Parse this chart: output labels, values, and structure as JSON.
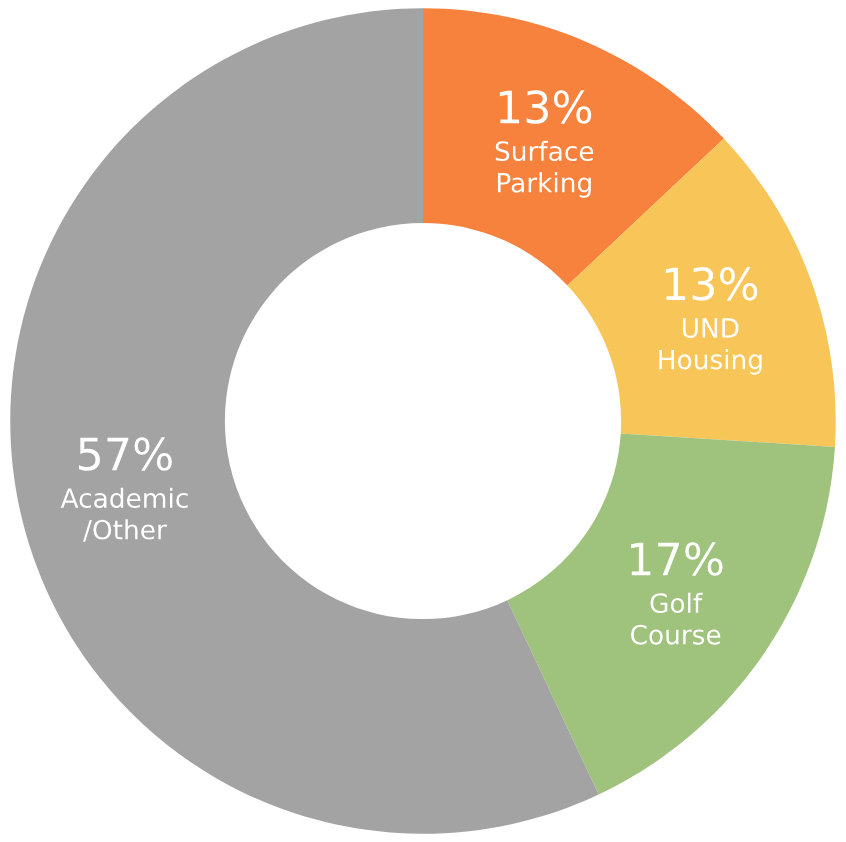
{
  "chart_data": {
    "type": "donut",
    "categories": [
      "Surface\nParking",
      "UND\nHousing",
      "Golf\nCourse",
      "Academic\n/Other"
    ],
    "values": [
      13,
      13,
      17,
      57
    ],
    "colors": [
      "#f6823e",
      "#f8c559",
      "#9fc27c",
      "#a3a3a3"
    ],
    "value_labels": [
      "13%",
      "13%",
      "17%",
      "57%"
    ]
  }
}
